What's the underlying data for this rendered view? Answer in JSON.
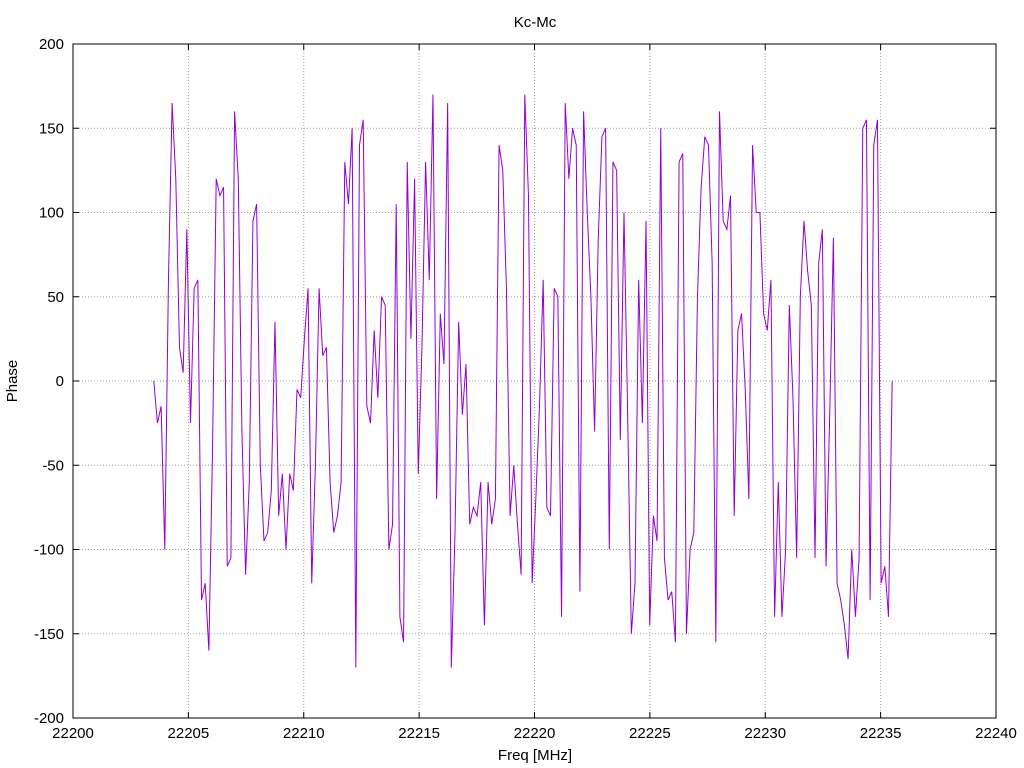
{
  "chart_data": {
    "type": "line",
    "title": "Kc-Mc",
    "xlabel": "Freq [MHz]",
    "ylabel": "Phase",
    "xlim": [
      22200,
      22240
    ],
    "ylim": [
      -200,
      200
    ],
    "x_ticks": [
      22200,
      22205,
      22210,
      22215,
      22220,
      22225,
      22230,
      22235,
      22240
    ],
    "y_ticks": [
      -200,
      -150,
      -100,
      -50,
      0,
      50,
      100,
      150,
      200
    ],
    "grid": true,
    "line_color": "#9400d3",
    "x_start": 22203.5,
    "x_end": 22235.5,
    "series": [
      {
        "values": [
          0,
          -25,
          -15,
          -100,
          60,
          165,
          120,
          20,
          5,
          90,
          -25,
          55,
          60,
          -130,
          -120,
          -160,
          -40,
          120,
          110,
          115,
          -110,
          -105,
          160,
          120,
          -30,
          -115,
          -60,
          95,
          105,
          -50,
          -95,
          -90,
          -65,
          35,
          -80,
          -55,
          -100,
          -55,
          -65,
          -5,
          -10,
          25,
          55,
          -120,
          -50,
          55,
          15,
          20,
          -60,
          -90,
          -80,
          -60,
          130,
          105,
          150,
          -170,
          140,
          155,
          -15,
          -25,
          30,
          -10,
          50,
          45,
          -100,
          -85,
          105,
          -140,
          -155,
          130,
          25,
          120,
          -55,
          20,
          130,
          60,
          170,
          -70,
          40,
          10,
          165,
          -170,
          -90,
          35,
          -20,
          10,
          -85,
          -75,
          -80,
          -60,
          -145,
          -60,
          -85,
          -70,
          140,
          125,
          55,
          -80,
          -50,
          -85,
          -115,
          170,
          110,
          -120,
          -70,
          -15,
          60,
          -75,
          -80,
          55,
          50,
          -140,
          165,
          120,
          150,
          140,
          -125,
          160,
          100,
          50,
          -30,
          85,
          145,
          150,
          -100,
          130,
          125,
          -35,
          100,
          -20,
          -150,
          -120,
          60,
          -25,
          95,
          -145,
          -80,
          -95,
          150,
          -105,
          -130,
          -125,
          -155,
          130,
          135,
          -150,
          -100,
          -90,
          50,
          115,
          145,
          140,
          70,
          -155,
          160,
          95,
          90,
          110,
          -80,
          30,
          40,
          -5,
          -70,
          140,
          100,
          100,
          40,
          30,
          60,
          -140,
          -60,
          -140,
          -100,
          45,
          -10,
          -105,
          50,
          95,
          65,
          45,
          -105,
          70,
          90,
          -110,
          -20,
          85,
          -120,
          -130,
          -145,
          -165,
          -100,
          -140,
          -105,
          150,
          155,
          -130,
          140,
          155,
          -120,
          -110,
          -140,
          0
        ]
      }
    ]
  }
}
